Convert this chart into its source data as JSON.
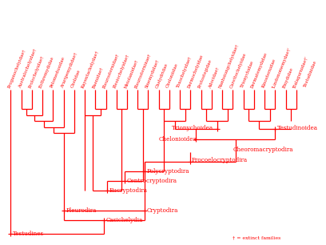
{
  "color": "#ff0000",
  "bg_color": "#ffffff",
  "leaf_labels": [
    "Proganochelyidae†",
    "Australochelyidae†",
    "Prolochelyidae†",
    "Bothremydidae",
    "Pelomedusidae",
    "Araripemydidae†",
    "Chelidae",
    "Kayentachelydae†",
    "Baenidae†",
    "Pleurosternidae†",
    "Plesiochelyidae†",
    "Meiolaniidae†",
    "Pleurosterninae†",
    "Sinemydidae†",
    "Chelydridae",
    "Cheloniidae",
    "Toxochelyidae†",
    "Dermochelyidae",
    "Protostegidae",
    "Adocidae†",
    "Nanhsiungchelyidae†",
    "Carettochelyidae",
    "Trionychidae",
    "Dermatemydidae",
    "Kinosternidae",
    "'Lindonomemydae†'",
    "Emydidae",
    "'Balagurnidae†'",
    "Testudinidae"
  ],
  "note": "† = extinct families",
  "lw": 0.9,
  "label_fontsize": 4.0,
  "internal_fontsize": 5.2
}
